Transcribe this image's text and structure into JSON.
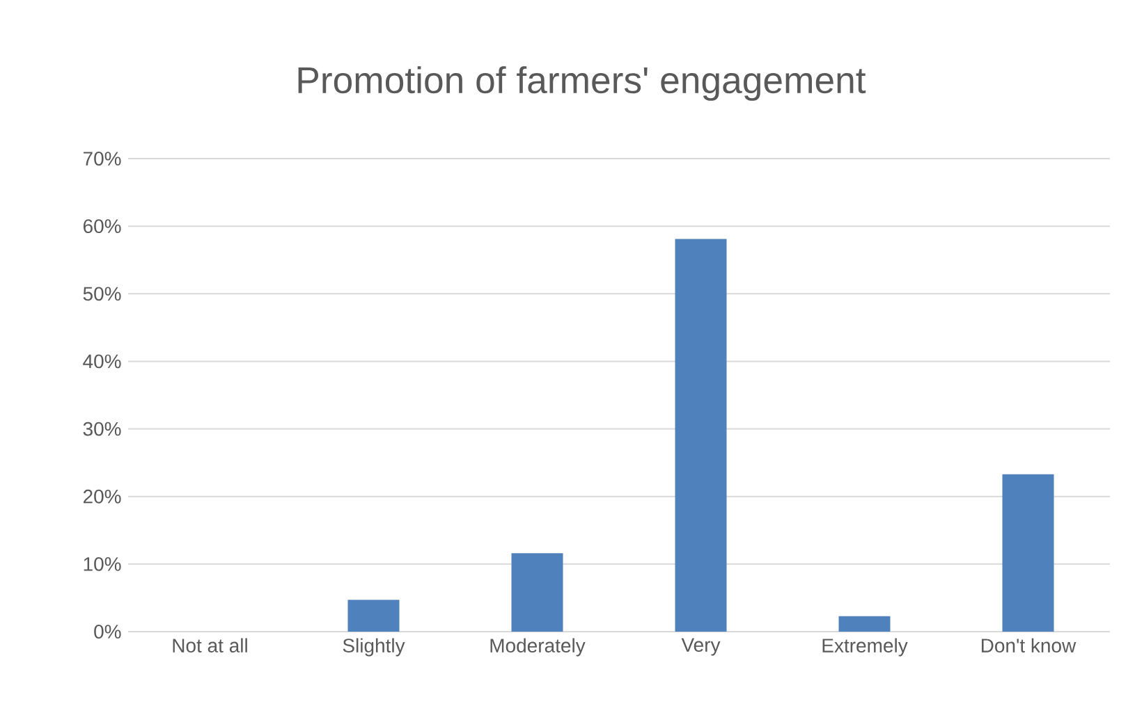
{
  "chart_data": {
    "type": "bar",
    "title": "Promotion of farmers' engagement",
    "categories": [
      "Not at all",
      "Slightly",
      "Moderately",
      "Very",
      "Extremely",
      "Don't know"
    ],
    "values": [
      0,
      4.7,
      11.6,
      58.1,
      2.3,
      23.3
    ],
    "color": "#4f81bd",
    "ylim": [
      0,
      70
    ],
    "yticks": [
      {
        "value": 0,
        "label": "0%"
      },
      {
        "value": 10,
        "label": "10%"
      },
      {
        "value": 20,
        "label": "20%"
      },
      {
        "value": 30,
        "label": "30%"
      },
      {
        "value": 40,
        "label": "40%"
      },
      {
        "value": 50,
        "label": "50%"
      },
      {
        "value": 60,
        "label": "60%"
      },
      {
        "value": 70,
        "label": "70%"
      }
    ],
    "grid": "y"
  }
}
